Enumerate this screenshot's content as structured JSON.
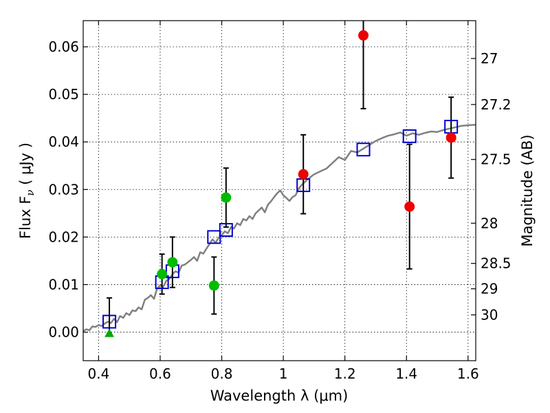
{
  "chart_data": {
    "type": "scatter",
    "xlabel": "Wavelength  λ (μm)",
    "ylabel_left": "Flux  F",
    "ylabel_left_sub": "ν",
    "ylabel_left_unit": " ( μJy )",
    "ylabel_right": "Magnitude (AB)",
    "xlim": [
      0.35,
      1.625
    ],
    "ylim": [
      -0.006,
      0.0655
    ],
    "grid": true,
    "x_ticks": [
      {
        "value": 0.4,
        "label": "0.4"
      },
      {
        "value": 0.6,
        "label": "0.6"
      },
      {
        "value": 0.8,
        "label": "0.8"
      },
      {
        "value": 1.0,
        "label": "1"
      },
      {
        "value": 1.2,
        "label": "1.2"
      },
      {
        "value": 1.4,
        "label": "1.4"
      },
      {
        "value": 1.6,
        "label": "1.6"
      }
    ],
    "y_ticks": [
      {
        "value": 0.0,
        "label": "0.00"
      },
      {
        "value": 0.01,
        "label": "0.01"
      },
      {
        "value": 0.02,
        "label": "0.02"
      },
      {
        "value": 0.03,
        "label": "0.03"
      },
      {
        "value": 0.04,
        "label": "0.04"
      },
      {
        "value": 0.05,
        "label": "0.05"
      },
      {
        "value": 0.06,
        "label": "0.06"
      }
    ],
    "right_ticks": [
      {
        "mag": 27,
        "label": "27"
      },
      {
        "mag": 27.2,
        "label": "27.2"
      },
      {
        "mag": 27.5,
        "label": "27.5"
      },
      {
        "mag": 28,
        "label": "28"
      },
      {
        "mag": 28.5,
        "label": "28.5"
      },
      {
        "mag": 29,
        "label": "29"
      },
      {
        "mag": 30,
        "label": "30"
      }
    ],
    "model_spectrum": {
      "color": "#808080",
      "x": [
        0.35,
        0.36,
        0.37,
        0.38,
        0.39,
        0.4,
        0.41,
        0.42,
        0.43,
        0.44,
        0.45,
        0.46,
        0.47,
        0.48,
        0.49,
        0.5,
        0.51,
        0.52,
        0.53,
        0.54,
        0.55,
        0.56,
        0.57,
        0.58,
        0.59,
        0.6,
        0.61,
        0.62,
        0.63,
        0.64,
        0.65,
        0.66,
        0.67,
        0.68,
        0.69,
        0.7,
        0.71,
        0.72,
        0.73,
        0.74,
        0.75,
        0.76,
        0.77,
        0.78,
        0.79,
        0.8,
        0.81,
        0.82,
        0.83,
        0.84,
        0.85,
        0.86,
        0.87,
        0.88,
        0.89,
        0.9,
        0.91,
        0.92,
        0.93,
        0.94,
        0.95,
        0.96,
        0.97,
        0.98,
        0.99,
        1.0,
        1.01,
        1.02,
        1.03,
        1.04,
        1.05,
        1.06,
        1.08,
        1.1,
        1.12,
        1.14,
        1.16,
        1.18,
        1.2,
        1.22,
        1.24,
        1.26,
        1.28,
        1.3,
        1.32,
        1.34,
        1.36,
        1.38,
        1.4,
        1.42,
        1.44,
        1.46,
        1.48,
        1.5,
        1.52,
        1.54,
        1.56,
        1.58,
        1.6,
        1.625
      ],
      "y": [
        0.0002,
        0.0006,
        0.0004,
        0.0012,
        0.0011,
        0.0015,
        0.0013,
        0.0018,
        0.0022,
        0.0019,
        0.0028,
        0.0021,
        0.0034,
        0.003,
        0.004,
        0.0036,
        0.0046,
        0.0044,
        0.0052,
        0.0048,
        0.0068,
        0.0072,
        0.0078,
        0.007,
        0.0092,
        0.0098,
        0.0095,
        0.0108,
        0.0112,
        0.0122,
        0.0128,
        0.0125,
        0.014,
        0.0142,
        0.0147,
        0.0152,
        0.0158,
        0.015,
        0.0168,
        0.0165,
        0.0175,
        0.0185,
        0.0195,
        0.0188,
        0.0199,
        0.0204,
        0.0212,
        0.0208,
        0.0221,
        0.0218,
        0.0229,
        0.0225,
        0.0238,
        0.0235,
        0.0244,
        0.0238,
        0.025,
        0.0256,
        0.0262,
        0.0252,
        0.0268,
        0.0275,
        0.0284,
        0.0292,
        0.0298,
        0.0288,
        0.0282,
        0.0276,
        0.0284,
        0.0288,
        0.0302,
        0.031,
        0.0322,
        0.0332,
        0.0338,
        0.0344,
        0.0356,
        0.0368,
        0.0362,
        0.0381,
        0.0378,
        0.0386,
        0.0394,
        0.0402,
        0.0408,
        0.0413,
        0.0416,
        0.042,
        0.0413,
        0.0418,
        0.0415,
        0.0419,
        0.0422,
        0.0421,
        0.0425,
        0.0428,
        0.0431,
        0.0434,
        0.0435,
        0.0436
      ]
    },
    "model_bands": {
      "color": "#0000cc",
      "x": [
        0.435,
        0.606,
        0.64,
        0.775,
        0.814,
        1.065,
        1.26,
        1.41,
        1.545
      ],
      "y": [
        0.0022,
        0.0105,
        0.0128,
        0.02,
        0.0215,
        0.0309,
        0.0384,
        0.0412,
        0.0432
      ]
    },
    "observed_green": {
      "color": "#00bb00",
      "points": [
        {
          "x": 0.606,
          "y": 0.0122,
          "err": 0.0042
        },
        {
          "x": 0.64,
          "y": 0.0147,
          "err": 0.0053
        },
        {
          "x": 0.775,
          "y": 0.0098,
          "err": 0.006
        },
        {
          "x": 0.814,
          "y": 0.0283,
          "err": 0.0062
        }
      ]
    },
    "observed_red": {
      "color": "#ee0000",
      "points": [
        {
          "x": 1.065,
          "y": 0.0332,
          "err": 0.0083
        },
        {
          "x": 1.26,
          "y": 0.0624,
          "err": 0.0154
        },
        {
          "x": 1.41,
          "y": 0.0264,
          "err": 0.0131
        },
        {
          "x": 1.545,
          "y": 0.0409,
          "err": 0.0085
        }
      ]
    },
    "upper_limit": {
      "color": "#00aa00",
      "x": 0.435,
      "y": -0.0003,
      "err_top": 0.0075,
      "err_bottom": 0.0
    }
  }
}
